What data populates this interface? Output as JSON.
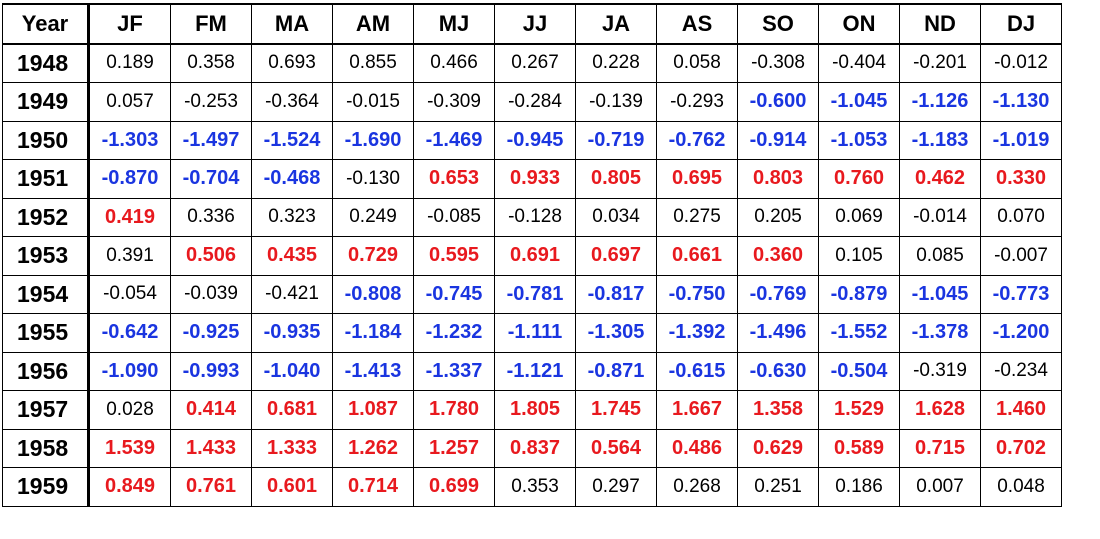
{
  "chart_data": {
    "type": "table",
    "columns": [
      "Year",
      "JF",
      "FM",
      "MA",
      "AM",
      "MJ",
      "JJ",
      "JA",
      "AS",
      "SO",
      "ON",
      "ND",
      "DJ"
    ],
    "rows": [
      {
        "year": "1948",
        "values": [
          "0.189",
          "0.358",
          "0.693",
          "0.855",
          "0.466",
          "0.267",
          "0.228",
          "0.058",
          "-0.308",
          "-0.404",
          "-0.201",
          "-0.012"
        ]
      },
      {
        "year": "1949",
        "values": [
          "0.057",
          "-0.253",
          "-0.364",
          "-0.015",
          "-0.309",
          "-0.284",
          "-0.139",
          "-0.293",
          "-0.600",
          "-1.045",
          "-1.126",
          "-1.130"
        ]
      },
      {
        "year": "1950",
        "values": [
          "-1.303",
          "-1.497",
          "-1.524",
          "-1.690",
          "-1.469",
          "-0.945",
          "-0.719",
          "-0.762",
          "-0.914",
          "-1.053",
          "-1.183",
          "-1.019"
        ]
      },
      {
        "year": "1951",
        "values": [
          "-0.870",
          "-0.704",
          "-0.468",
          "-0.130",
          "0.653",
          "0.933",
          "0.805",
          "0.695",
          "0.803",
          "0.760",
          "0.462",
          "0.330"
        ]
      },
      {
        "year": "1952",
        "values": [
          "0.419",
          "0.336",
          "0.323",
          "0.249",
          "-0.085",
          "-0.128",
          "0.034",
          "0.275",
          "0.205",
          "0.069",
          "-0.014",
          "0.070"
        ]
      },
      {
        "year": "1953",
        "values": [
          "0.391",
          "0.506",
          "0.435",
          "0.729",
          "0.595",
          "0.691",
          "0.697",
          "0.661",
          "0.360",
          "0.105",
          "0.085",
          "-0.007"
        ]
      },
      {
        "year": "1954",
        "values": [
          "-0.054",
          "-0.039",
          "-0.421",
          "-0.808",
          "-0.745",
          "-0.781",
          "-0.817",
          "-0.750",
          "-0.769",
          "-0.879",
          "-1.045",
          "-0.773"
        ]
      },
      {
        "year": "1955",
        "values": [
          "-0.642",
          "-0.925",
          "-0.935",
          "-1.184",
          "-1.232",
          "-1.111",
          "-1.305",
          "-1.392",
          "-1.496",
          "-1.552",
          "-1.378",
          "-1.200"
        ]
      },
      {
        "year": "1956",
        "values": [
          "-1.090",
          "-0.993",
          "-1.040",
          "-1.413",
          "-1.337",
          "-1.121",
          "-0.871",
          "-0.615",
          "-0.630",
          "-0.504",
          "-0.319",
          "-0.234"
        ]
      },
      {
        "year": "1957",
        "values": [
          "0.028",
          "0.414",
          "0.681",
          "1.087",
          "1.780",
          "1.805",
          "1.745",
          "1.667",
          "1.358",
          "1.529",
          "1.628",
          "1.460"
        ]
      },
      {
        "year": "1958",
        "values": [
          "1.539",
          "1.433",
          "1.333",
          "1.262",
          "1.257",
          "0.837",
          "0.564",
          "0.486",
          "0.629",
          "0.589",
          "0.715",
          "0.702"
        ]
      },
      {
        "year": "1959",
        "values": [
          "0.849",
          "0.761",
          "0.601",
          "0.714",
          "0.699",
          "0.353",
          "0.297",
          "0.268",
          "0.251",
          "0.186",
          "0.007",
          "0.048"
        ]
      }
    ],
    "styles": [
      [
        "n",
        "n",
        "n",
        "n",
        "n",
        "n",
        "n",
        "n",
        "n",
        "n",
        "n",
        "n"
      ],
      [
        "n",
        "n",
        "n",
        "n",
        "n",
        "n",
        "n",
        "n",
        "c",
        "c",
        "c",
        "c"
      ],
      [
        "c",
        "c",
        "c",
        "c",
        "c",
        "c",
        "c",
        "c",
        "c",
        "c",
        "c",
        "c"
      ],
      [
        "c",
        "c",
        "c",
        "n",
        "w",
        "w",
        "w",
        "w",
        "w",
        "w",
        "w",
        "w"
      ],
      [
        "w",
        "n",
        "n",
        "n",
        "n",
        "n",
        "n",
        "n",
        "n",
        "n",
        "n",
        "n"
      ],
      [
        "n",
        "w",
        "w",
        "w",
        "w",
        "w",
        "w",
        "w",
        "w",
        "n",
        "n",
        "n"
      ],
      [
        "n",
        "n",
        "n",
        "c",
        "c",
        "c",
        "c",
        "c",
        "c",
        "c",
        "c",
        "c"
      ],
      [
        "c",
        "c",
        "c",
        "c",
        "c",
        "c",
        "c",
        "c",
        "c",
        "c",
        "c",
        "c"
      ],
      [
        "c",
        "c",
        "c",
        "c",
        "c",
        "c",
        "c",
        "c",
        "c",
        "c",
        "n",
        "n"
      ],
      [
        "n",
        "w",
        "w",
        "w",
        "w",
        "w",
        "w",
        "w",
        "w",
        "w",
        "w",
        "w"
      ],
      [
        "w",
        "w",
        "w",
        "w",
        "w",
        "w",
        "w",
        "w",
        "w",
        "w",
        "w",
        "w"
      ],
      [
        "w",
        "w",
        "w",
        "w",
        "w",
        "n",
        "n",
        "n",
        "n",
        "n",
        "n",
        "n"
      ]
    ],
    "colors": {
      "warm": "#e8191e",
      "cool": "#1a35e0",
      "neutral": "#000000"
    }
  }
}
